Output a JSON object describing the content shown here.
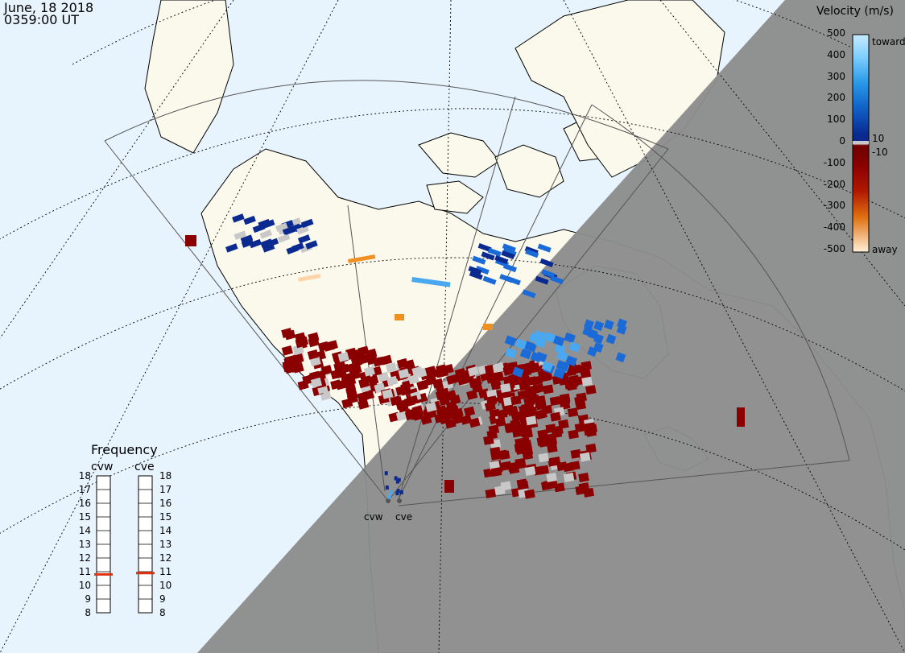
{
  "header": {
    "date": "June, 18 2018",
    "time": "0359:00 UT"
  },
  "colorbar": {
    "title": "Velocity (m/s)",
    "ticks": [
      "500",
      "400",
      "300",
      "200",
      "100",
      "0",
      "-100",
      "-200",
      "-300",
      "-400",
      "-500"
    ],
    "label_toward": "toward",
    "label_10": "10",
    "label_minus10": "-10",
    "label_away": "away",
    "stops": [
      "#c8eaff",
      "#7fd0ff",
      "#2a9ae8",
      "#1060c8",
      "#0a2a90",
      "#ffffff",
      "#6e0000",
      "#a01000",
      "#d04000",
      "#f09020",
      "#fff0d8"
    ]
  },
  "frequency": {
    "title": "Frequency",
    "radars": [
      "cvw",
      "cve"
    ],
    "scale": [
      "18",
      "17",
      "16",
      "15",
      "14",
      "13",
      "12",
      "11",
      "10",
      "9",
      "8"
    ],
    "values_mhz": [
      10.8,
      10.9
    ],
    "marker_color": "#e03010"
  },
  "sites": {
    "cvw": "cvw",
    "cve": "cve"
  },
  "colors": {
    "ocean": "#e8f4fd",
    "land": "#fbf9ec",
    "night": "#8c8c8c",
    "ground_scatter": "#c8c8c8"
  }
}
